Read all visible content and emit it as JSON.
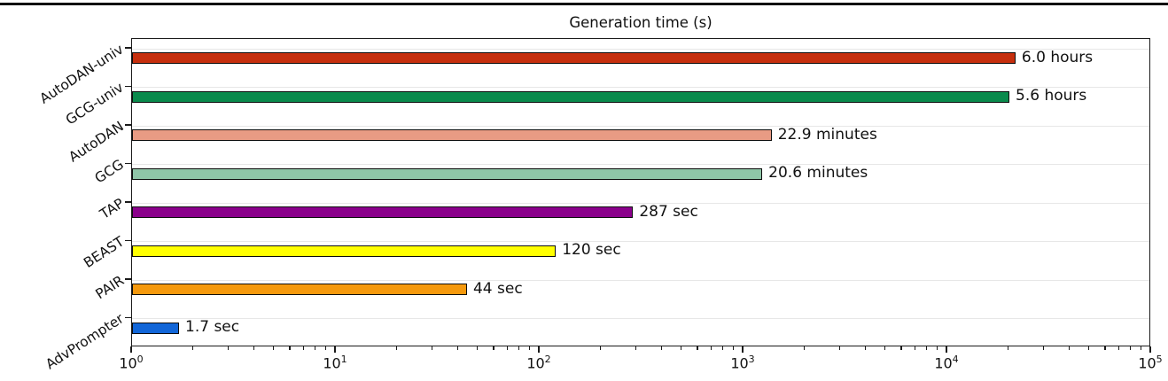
{
  "figure": {
    "top_rule_color": "#111111"
  },
  "chart_data": {
    "type": "bar",
    "orientation": "horizontal",
    "title": "Generation time (s)",
    "xscale": "log",
    "xlim": [
      1,
      100000
    ],
    "grid": true,
    "legend": false,
    "categories": [
      "AutoDAN-univ",
      "GCG-univ",
      "AutoDAN",
      "GCG",
      "TAP",
      "BEAST",
      "PAIR",
      "AdvPrompter"
    ],
    "values_seconds": [
      21600,
      20160,
      1374,
      1236,
      287,
      120,
      44,
      1.7
    ],
    "bar_labels": [
      "6.0 hours",
      "5.6 hours",
      "22.9 minutes",
      "20.6 minutes",
      "287 sec",
      "120 sec",
      "44 sec",
      "1.7 sec"
    ],
    "bar_colors": [
      "#c62f0e",
      "#0a8a4c",
      "#e89b84",
      "#8fc6a8",
      "#8a008b",
      "#ffff00",
      "#f5990d",
      "#1266d8"
    ],
    "x_ticks": [
      {
        "base": "10",
        "exp": "0",
        "value": 1
      },
      {
        "base": "10",
        "exp": "1",
        "value": 10
      },
      {
        "base": "10",
        "exp": "2",
        "value": 100
      },
      {
        "base": "10",
        "exp": "3",
        "value": 1000
      },
      {
        "base": "10",
        "exp": "4",
        "value": 10000
      },
      {
        "base": "10",
        "exp": "5",
        "value": 100000
      }
    ],
    "gridline_color": "#e7e7e7",
    "bar_edge_color": "#0d0d0d",
    "axis_color": "#1a1a1a",
    "text_color": "#111111"
  }
}
